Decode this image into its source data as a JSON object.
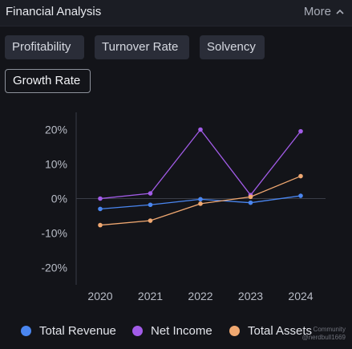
{
  "header": {
    "title": "Financial Analysis",
    "more_label": "More",
    "more_icon": "chevron-up-icon"
  },
  "tabs": [
    {
      "label": "Profitability",
      "active": false
    },
    {
      "label": "Turnover Rate",
      "active": false
    },
    {
      "label": "Solvency",
      "active": false
    },
    {
      "label": "Growth Rate",
      "active": true
    }
  ],
  "colors": {
    "background": "#131419",
    "total_revenue": "#4a86f0",
    "net_income": "#a25ce8",
    "total_assets": "#f0a871"
  },
  "chart_data": {
    "type": "line",
    "title": "",
    "xlabel": "",
    "ylabel": "",
    "categories": [
      "2020",
      "2021",
      "2022",
      "2023",
      "2024"
    ],
    "ylim": [
      -25,
      25
    ],
    "yticks": [
      20,
      10,
      0,
      -10,
      -20
    ],
    "ytick_labels": [
      "20%",
      "10%",
      "0%",
      "-10%",
      "-20%"
    ],
    "grid": false,
    "legend_position": "bottom",
    "series": [
      {
        "name": "Total Revenue",
        "color": "#4a86f0",
        "values": [
          -3.0,
          -1.8,
          -0.2,
          -1.2,
          0.8
        ]
      },
      {
        "name": "Net Income",
        "color": "#a25ce8",
        "values": [
          0.0,
          1.5,
          20.0,
          1.0,
          19.5
        ]
      },
      {
        "name": "Total Assets",
        "color": "#f0a871",
        "values": [
          -7.7,
          -6.4,
          -1.5,
          0.5,
          6.5
        ]
      }
    ]
  },
  "watermark": {
    "line1": "Community",
    "line2": "@nerdbull1669"
  }
}
